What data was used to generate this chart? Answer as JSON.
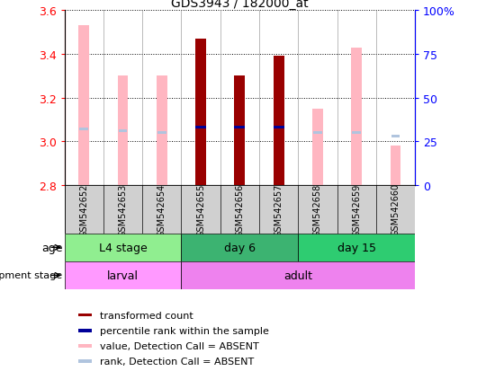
{
  "title": "GDS3943 / 182000_at",
  "samples": [
    "GSM542652",
    "GSM542653",
    "GSM542654",
    "GSM542655",
    "GSM542656",
    "GSM542657",
    "GSM542658",
    "GSM542659",
    "GSM542660"
  ],
  "transformed_count": [
    null,
    null,
    null,
    3.47,
    3.3,
    3.39,
    null,
    null,
    null
  ],
  "tc_absent": [
    3.53,
    3.3,
    3.3,
    null,
    null,
    null,
    3.15,
    3.43,
    2.98
  ],
  "percentile_rank": [
    null,
    null,
    null,
    33,
    33,
    33,
    null,
    null,
    null
  ],
  "pr_absent": [
    32,
    31,
    30,
    null,
    null,
    null,
    30,
    30,
    28
  ],
  "ylim_left": [
    2.8,
    3.6
  ],
  "ylim_right": [
    0,
    100
  ],
  "yticks_left": [
    2.8,
    3.0,
    3.2,
    3.4,
    3.6
  ],
  "yticks_right": [
    0,
    25,
    50,
    75,
    100
  ],
  "age_groups": [
    {
      "label": "L4 stage",
      "start": 0,
      "end": 3,
      "color": "#90EE90"
    },
    {
      "label": "day 6",
      "start": 3,
      "end": 6,
      "color": "#3CB371"
    },
    {
      "label": "day 15",
      "start": 6,
      "end": 9,
      "color": "#2ECC71"
    }
  ],
  "dev_stage_groups": [
    {
      "label": "larval",
      "start": 0,
      "end": 3,
      "color": "#FF99FF"
    },
    {
      "label": "adult",
      "start": 3,
      "end": 9,
      "color": "#EE82EE"
    }
  ],
  "bar_width": 0.5,
  "tc_color": "#990000",
  "tc_absent_color": "#FFB6C1",
  "pr_color": "#000099",
  "pr_absent_color": "#B0C4DE",
  "legend_items": [
    {
      "label": "transformed count",
      "color": "#990000"
    },
    {
      "label": "percentile rank within the sample",
      "color": "#000099"
    },
    {
      "label": "value, Detection Call = ABSENT",
      "color": "#FFB6C1"
    },
    {
      "label": "rank, Detection Call = ABSENT",
      "color": "#B0C4DE"
    }
  ]
}
